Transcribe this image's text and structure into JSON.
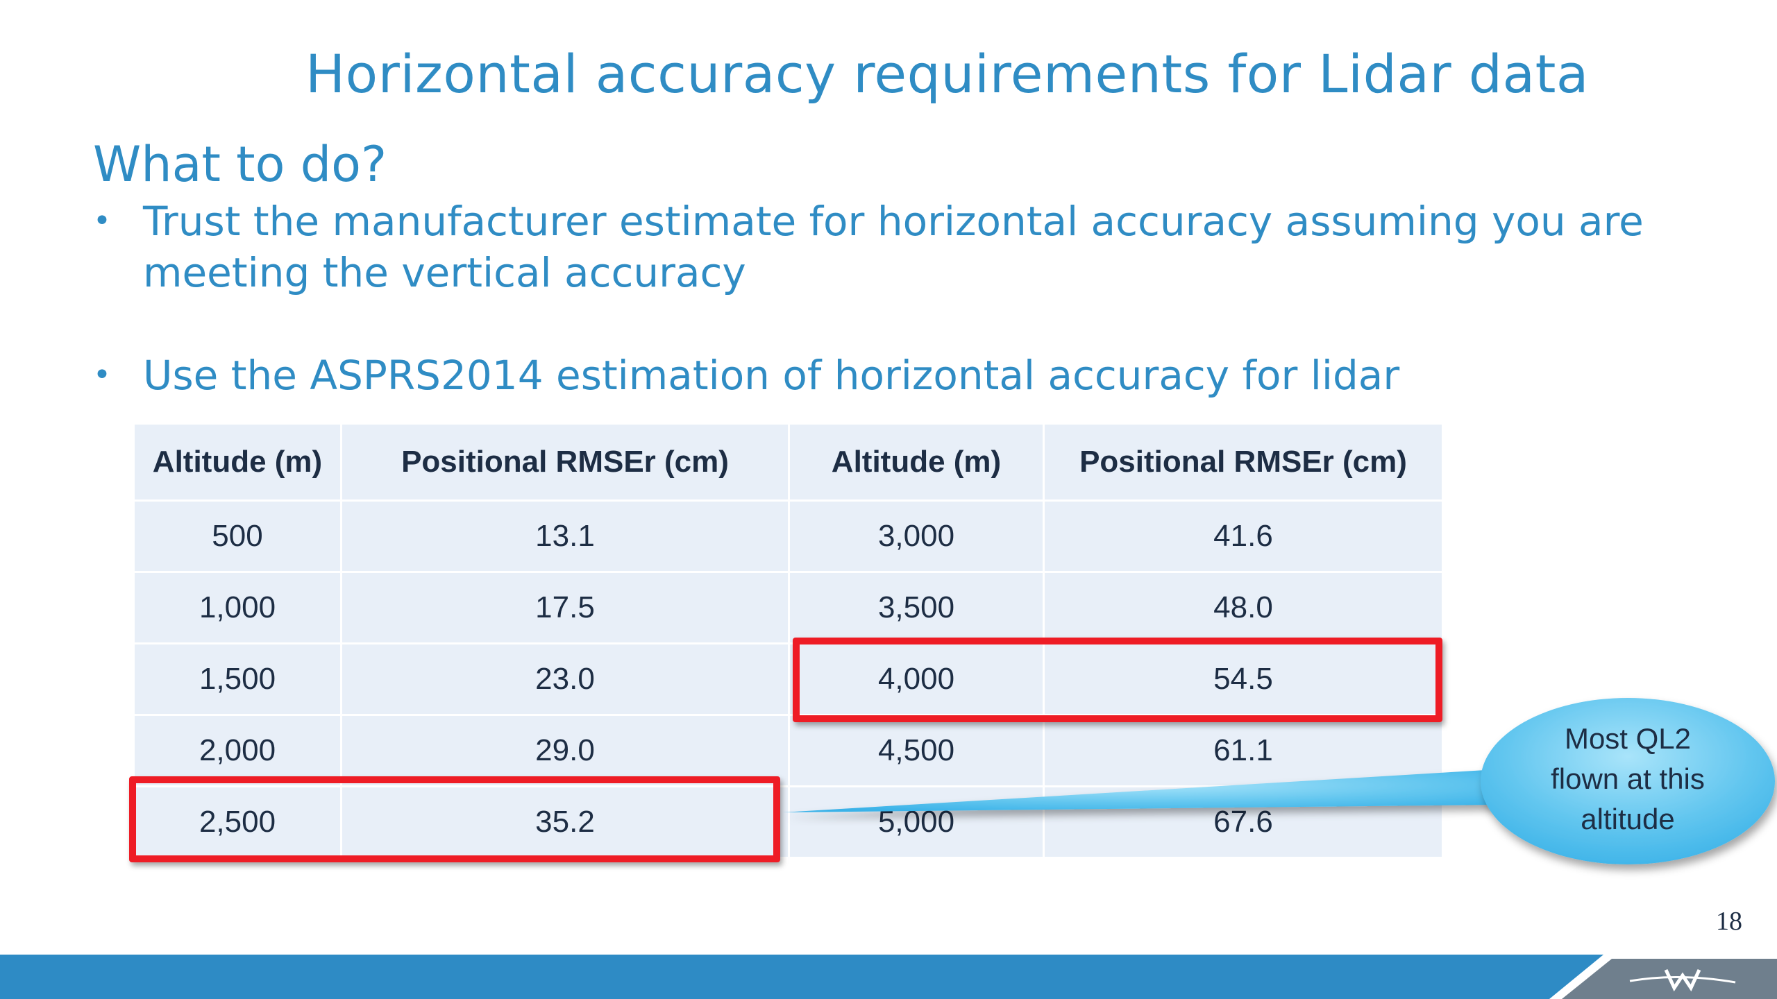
{
  "slide": {
    "title": "Horizontal accuracy requirements for Lidar data",
    "subtitle": "What to do?",
    "bullets": [
      "Trust the manufacturer estimate for horizontal accuracy assuming you are meeting the vertical accuracy",
      "Use the ASPRS2014 estimation of horizontal accuracy for lidar"
    ],
    "bullet_symbol": "•",
    "page_number": "18"
  },
  "table": {
    "headers": [
      "Altitude (m)",
      "Positional RMSEr (cm)",
      "Altitude (m)",
      "Positional RMSEr (cm)"
    ],
    "rows": [
      [
        "500",
        "13.1",
        "3,000",
        "41.6"
      ],
      [
        "1,000",
        "17.5",
        "3,500",
        "48.0"
      ],
      [
        "1,500",
        "23.0",
        "4,000",
        "54.5"
      ],
      [
        "2,000",
        "29.0",
        "4,500",
        "61.1"
      ],
      [
        "2,500",
        "35.2",
        "5,000",
        "67.6"
      ]
    ]
  },
  "callout": {
    "lines": [
      "Most QL2",
      "flown at this",
      "altitude"
    ]
  },
  "colors": {
    "title_blue": "#2f8cc4",
    "highlight_red": "#ee1c25",
    "table_bg": "#e8eff8",
    "footer_blue": "#2e8bc5",
    "callout_blue": "#5bc2ee"
  },
  "icons": {
    "footer_logo": "w-logo-icon"
  }
}
